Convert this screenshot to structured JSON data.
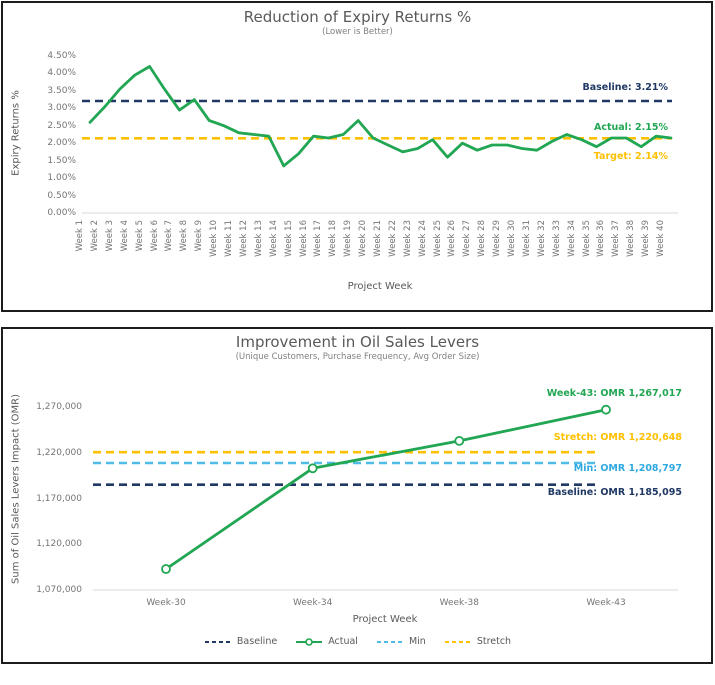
{
  "colors": {
    "green": "#21A653",
    "navy": "#1F3864",
    "yellow": "#FFC000",
    "light_blue": "#4FBCE8",
    "axis_line": "#D9D9D9",
    "title_gray": "#595959",
    "tick_gray": "#757575"
  },
  "chart_data": [
    {
      "type": "line",
      "title": "Reduction of Expiry Returns %",
      "subtitle": "(Lower is Better)",
      "xlabel": "Project Week",
      "ylabel": "Expiry Returns %",
      "ylim": [
        0,
        4.5
      ],
      "grid": false,
      "y_ticks": [
        {
          "value": 0,
          "label": "0.00%"
        },
        {
          "value": 0.5,
          "label": "0.50%"
        },
        {
          "value": 1,
          "label": "1.00%"
        },
        {
          "value": 1.5,
          "label": "1.50%"
        },
        {
          "value": 2,
          "label": "2.00%"
        },
        {
          "value": 2.5,
          "label": "2.50%"
        },
        {
          "value": 3,
          "label": "3.00%"
        },
        {
          "value": 3.5,
          "label": "3.50%"
        },
        {
          "value": 4,
          "label": "4.00%"
        },
        {
          "value": 4.5,
          "label": "4.50%"
        }
      ],
      "categories": [
        "Week 1",
        "Week 2",
        "Week 3",
        "Week 4",
        "Week 5",
        "Week 6",
        "Week 7",
        "Week 8",
        "Week 9",
        "Week 10",
        "Week 11",
        "Week 12",
        "Week 13",
        "Week 14",
        "Week 15",
        "Week 16",
        "Week 17",
        "Week 18",
        "Week 19",
        "Week 20",
        "Week 21",
        "Week 22",
        "Week 23",
        "Week 24",
        "Week 25",
        "Week 26",
        "Week 27",
        "Week 28",
        "Week 29",
        "Week 30",
        "Week 31",
        "Week 32",
        "Week 33",
        "Week 34",
        "Week 35",
        "Week 36",
        "Week 37",
        "Week 38",
        "Week 39",
        "Week 40"
      ],
      "series": [
        {
          "name": "Actual",
          "color": "#21A653",
          "values": [
            2.6,
            3.05,
            3.55,
            3.95,
            4.2,
            3.55,
            2.95,
            3.25,
            2.65,
            2.5,
            2.3,
            2.25,
            2.2,
            1.35,
            1.7,
            2.2,
            2.15,
            2.25,
            2.65,
            2.15,
            1.95,
            1.75,
            1.85,
            2.1,
            1.6,
            2.0,
            1.8,
            1.95,
            1.95,
            1.85,
            1.8,
            2.05,
            2.25,
            2.1,
            1.9,
            2.15,
            2.15,
            1.9,
            2.2,
            2.15
          ]
        }
      ],
      "reference_lines": [
        {
          "name": "Baseline",
          "value": 3.21,
          "style": "dashed",
          "color": "#1F3864"
        },
        {
          "name": "Target",
          "value": 2.14,
          "style": "dashed",
          "color": "#FFC000"
        }
      ],
      "annotations": [
        {
          "id": "baseline",
          "text": "Baseline: 3.21%",
          "color": "#1F3864"
        },
        {
          "id": "actual",
          "text": "Actual: 2.15%",
          "color": "#21A653"
        },
        {
          "id": "target",
          "text": "Target: 2.14%",
          "color": "#FFC000"
        }
      ]
    },
    {
      "type": "line",
      "title": "Improvement in Oil Sales Levers",
      "subtitle": "(Unique Customers, Purchase Frequency, Avg Order Size)",
      "xlabel": "Project Week",
      "ylabel": "Sum of Oil Sales Levers Impact (OMR)",
      "ylim": [
        1070000,
        1290000
      ],
      "grid": false,
      "y_ticks": [
        {
          "value": 1070000,
          "label": "1,070,000"
        },
        {
          "value": 1120000,
          "label": "1,120,000"
        },
        {
          "value": 1170000,
          "label": "1,170,000"
        },
        {
          "value": 1220000,
          "label": "1,220,000"
        },
        {
          "value": 1270000,
          "label": "1,270,000"
        }
      ],
      "categories": [
        "Week-30",
        "Week-34",
        "Week-38",
        "Week-43"
      ],
      "series": [
        {
          "name": "Actual",
          "color": "#21A653",
          "marker": "open-circle",
          "values": [
            1093000,
            1203000,
            1233000,
            1267017
          ]
        }
      ],
      "reference_lines": [
        {
          "name": "Baseline",
          "value": 1185095,
          "style": "dashed",
          "color": "#1F3864"
        },
        {
          "name": "Min",
          "value": 1208797,
          "style": "dashed",
          "color": "#4FBCE8"
        },
        {
          "name": "Stretch",
          "value": 1220648,
          "style": "dashed",
          "color": "#FFC000"
        }
      ],
      "annotations": [
        {
          "id": "last-point",
          "text": "Week-43: OMR 1,267,017",
          "color": "#21A653"
        },
        {
          "id": "stretch",
          "text": "Stretch: OMR 1,220,648",
          "color": "#FFC000"
        },
        {
          "id": "min",
          "text": "Min: OMR 1,208,797",
          "color": "#2FA9E0"
        },
        {
          "id": "baseline",
          "text": "Baseline: OMR 1,185,095",
          "color": "#1F3864"
        }
      ],
      "legend": [
        "Baseline",
        "Actual",
        "Min",
        "Stretch"
      ],
      "legend_position": "bottom"
    }
  ]
}
